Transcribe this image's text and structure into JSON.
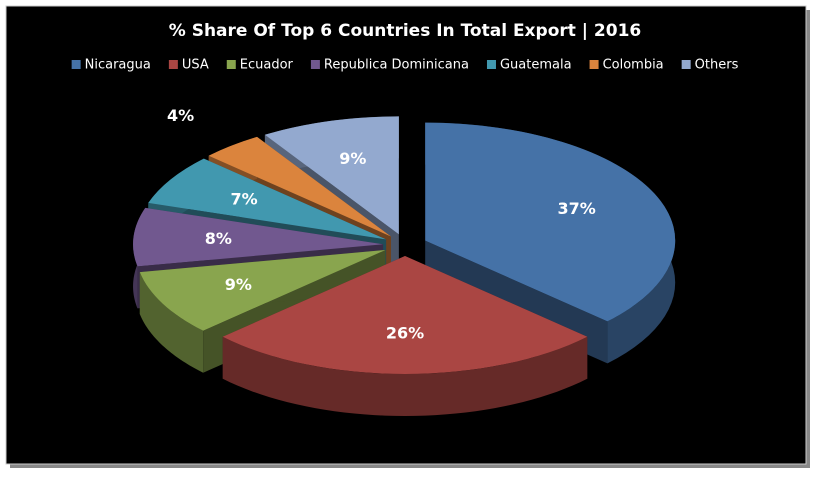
{
  "chart_data": {
    "type": "pie",
    "title": "% Share Of Top 6 Countries In Total Export | 2016",
    "categories": [
      "Nicaragua",
      "USA",
      "Ecuador",
      "Republica Dominicana",
      "Guatemala",
      "Colombia",
      "Others"
    ],
    "values": [
      37,
      26,
      9,
      8,
      7,
      4,
      9
    ],
    "value_labels": [
      "37%",
      "26%",
      "9%",
      "8%",
      "7%",
      "4%",
      "9%"
    ],
    "colors": [
      "#4572a7",
      "#aa4643",
      "#89a54e",
      "#71588f",
      "#4198af",
      "#db843d",
      "#93a9cf"
    ],
    "legend": "top"
  }
}
